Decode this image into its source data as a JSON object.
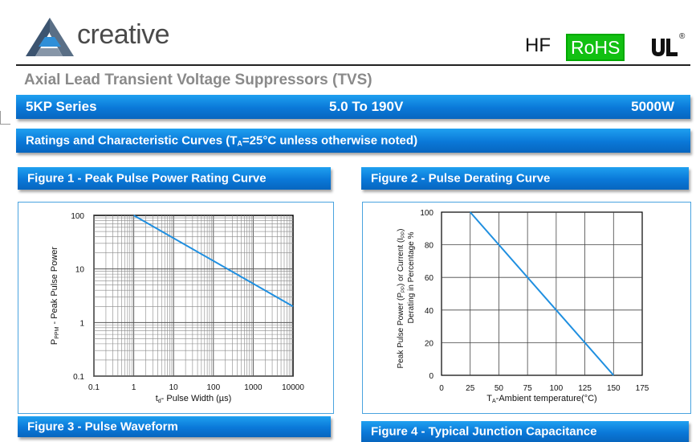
{
  "brand": {
    "name": "creative"
  },
  "certifications": {
    "hf": "HF",
    "rohs": "RoHS",
    "ul": "UL",
    "registered": "®"
  },
  "title": "Axial Lead Transient Voltage Suppressors (TVS)",
  "series_bar": {
    "series": "5KP Series",
    "voltage": "5.0 To 190V",
    "power": "5000W"
  },
  "ratings_bar": {
    "prefix": "Ratings and Characteristic Curves (T",
    "sub": "A",
    "suffix": "=25°C unless otherwise noted)"
  },
  "figures": {
    "fig1": "Figure 1 - Peak Pulse Power Rating Curve",
    "fig2": "Figure 2 - Pulse Derating Curve",
    "fig3": "Figure 3 - Pulse Waveform",
    "fig4": "Figure 4 - Typical Junction Capacitance"
  },
  "colors": {
    "accent": "#0a78d8",
    "curve": "#1f8fe0",
    "rohs": "#12c012"
  },
  "chart_data": [
    {
      "type": "line",
      "title": "Figure 1 - Peak Pulse Power Rating Curve",
      "x_scale": "log",
      "y_scale": "log",
      "xlim": [
        0.1,
        10000
      ],
      "ylim": [
        0.1,
        100
      ],
      "x_ticks": [
        "0.1",
        "1",
        "10",
        "100",
        "1000",
        "10000"
      ],
      "y_ticks": [
        "100",
        "10",
        "1",
        "0.1"
      ],
      "xlabel": {
        "pre": "t",
        "sub": "d",
        "post": "- Pulse Width (µs)"
      },
      "ylabel": {
        "main": "P",
        "sub": "PPM",
        "post": "  -   Peak   Pulse   Power"
      },
      "grid": true,
      "series": [
        {
          "x": [
            1,
            10000
          ],
          "y": [
            100,
            2
          ]
        }
      ]
    },
    {
      "type": "line",
      "title": "Figure 2 - Pulse Derating Curve",
      "xlim": [
        0,
        175
      ],
      "ylim": [
        0,
        100
      ],
      "x_ticks": [
        "0",
        "25",
        "50",
        "75",
        "100",
        "125",
        "150",
        "175"
      ],
      "y_ticks": [
        "0",
        "20",
        "40",
        "60",
        "80",
        "100"
      ],
      "xlabel": {
        "pre": "T",
        "sub": "A",
        "post": "-Ambient temperature(°C)"
      },
      "ylabel": {
        "line1": "Peak Pulse Power (P",
        "sub1": "PP",
        "mid": ") or Current (I",
        "sub2": "PP",
        "end": ")",
        "line2": "Derating in Percentage %"
      },
      "grid": true,
      "series": [
        {
          "x": [
            25,
            150
          ],
          "y": [
            100,
            0
          ]
        }
      ]
    }
  ]
}
